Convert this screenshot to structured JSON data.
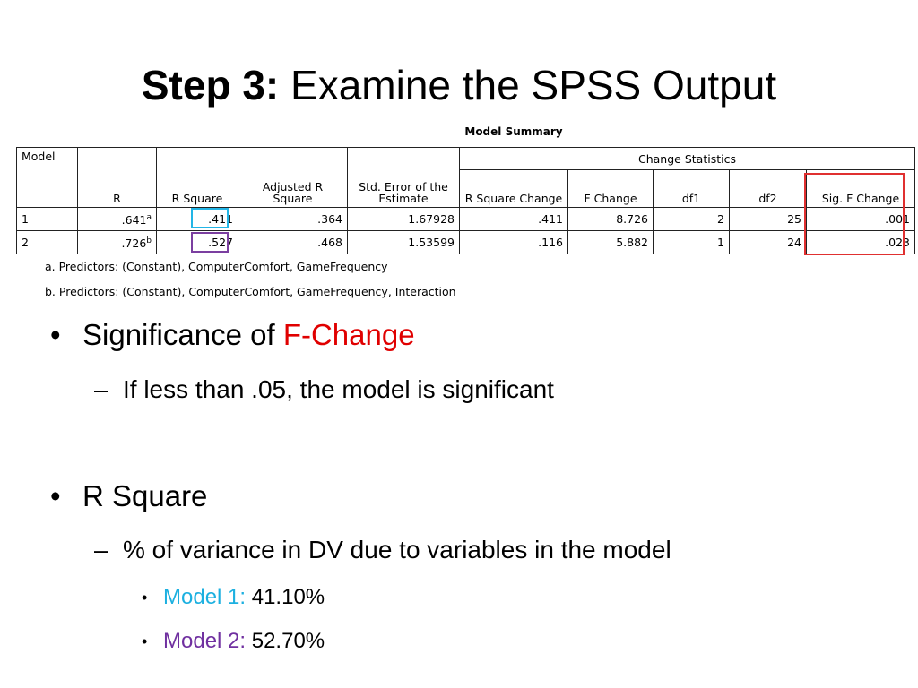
{
  "title": {
    "bold": "Step 3:",
    "rest": "Examine the SPSS Output"
  },
  "table": {
    "caption": "Model Summary",
    "group_header": "Change Statistics",
    "headers": [
      "Model",
      "R",
      "R Square",
      "Adjusted R Square",
      "Std. Error of the Estimate",
      "R Square Change",
      "F Change",
      "df1",
      "df2",
      "Sig. F Change"
    ],
    "rows": [
      [
        "1",
        ".641",
        ".411",
        ".364",
        "1.67928",
        ".411",
        "8.726",
        "2",
        "25",
        ".001"
      ],
      [
        "2",
        ".726",
        ".527",
        ".468",
        "1.53599",
        ".116",
        "5.882",
        "1",
        "24",
        ".023"
      ]
    ],
    "row_notes": [
      "a",
      "b"
    ],
    "footnotes": [
      "a. Predictors: (Constant), ComputerComfort, GameFrequency",
      "b. Predictors: (Constant), ComputerComfort, GameFrequency, Interaction"
    ]
  },
  "bullets": [
    {
      "text": "Significance of ",
      "highlight": "F-Change",
      "sub": "If less than .05, the model is significant"
    },
    {
      "text": "R Square",
      "sub": "% of variance in DV due to variables in the model",
      "items": [
        {
          "label": "Model 1:",
          "value": "41.10%"
        },
        {
          "label": "Model 2:",
          "value": "52.70%"
        }
      ]
    }
  ]
}
